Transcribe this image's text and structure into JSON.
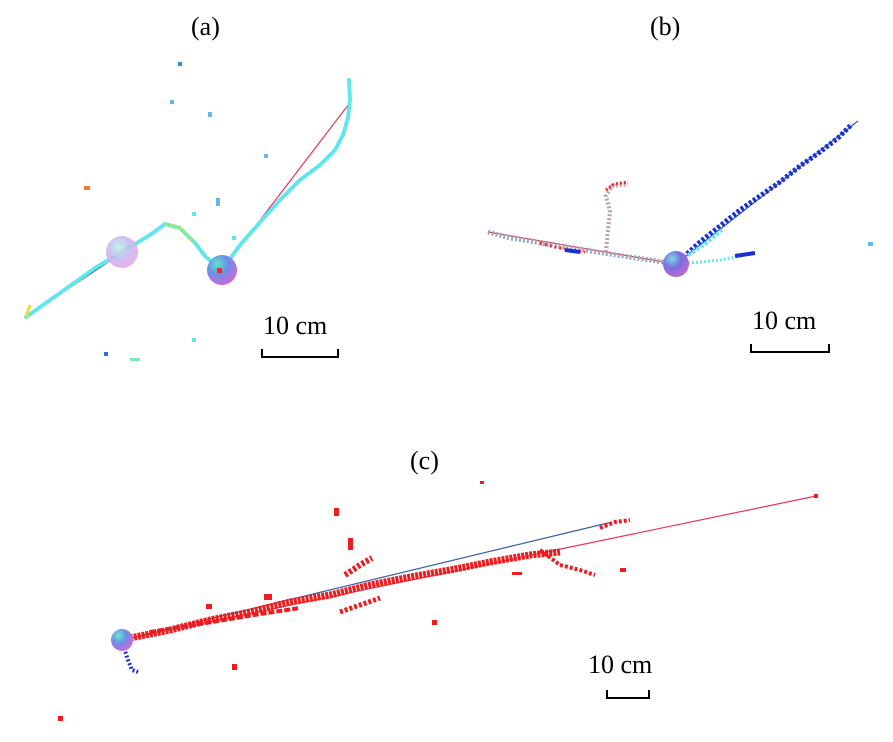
{
  "panels": [
    {
      "id": "a",
      "label": "(a)",
      "scale_label": "10 cm"
    },
    {
      "id": "b",
      "label": "(b)",
      "scale_label": "10 cm"
    },
    {
      "id": "c",
      "label": "(c)",
      "scale_label": "10 cm"
    }
  ],
  "colors": {
    "cyan_points": "#5fe6ee",
    "blue_points": "#1a2fd6",
    "red_points": "#ee1c1c",
    "red_line": "#e8325a",
    "blue_line": "#3b5fa8",
    "dark_line": "#2d4b5c"
  }
}
